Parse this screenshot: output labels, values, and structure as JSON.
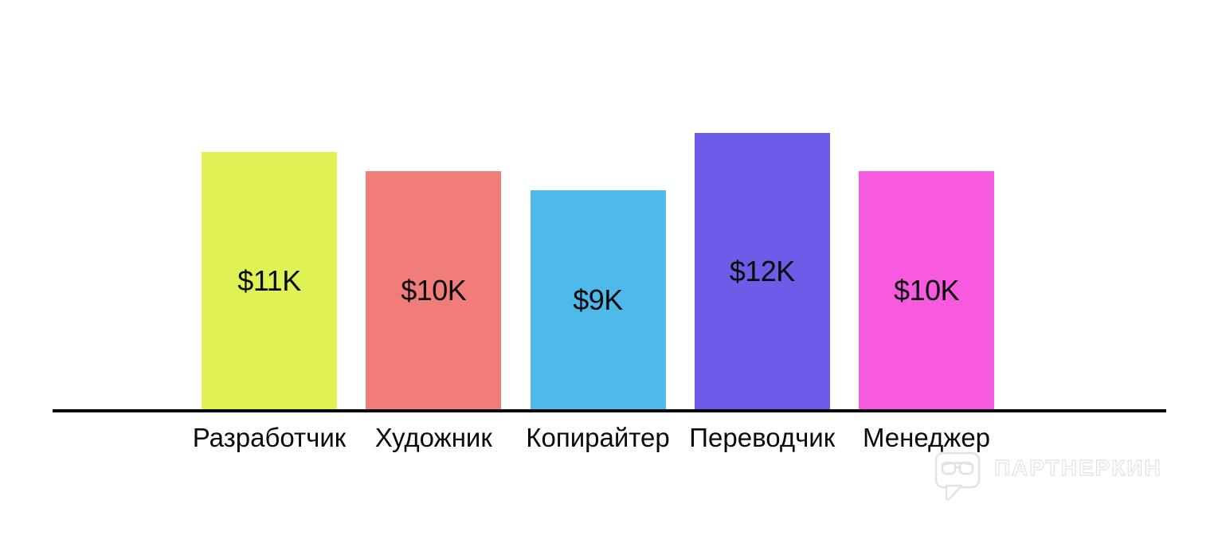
{
  "chart_data": {
    "type": "bar",
    "title": "",
    "xlabel": "",
    "ylabel": "",
    "categories": [
      "Разработчик",
      "Художник",
      "Копирайтер",
      "Переводчик",
      "Менеджер"
    ],
    "values": [
      11,
      10,
      9,
      12,
      10
    ],
    "unit": "thousand USD ($K)",
    "value_labels": [
      "$11K",
      "$10K",
      "$9K",
      "$12K",
      "$10K"
    ],
    "bar_colors": [
      "#dff155",
      "#f17d7b",
      "#4fbae9",
      "#6c5ce8",
      "#f65ade"
    ],
    "label_color": "#0a0a0a",
    "axis_color": "#000000",
    "grid": false,
    "legend": false,
    "value_label_position": "center-of-bar",
    "background": "#ffffff"
  },
  "watermark": {
    "text": "ПАРТНЕРКИН",
    "logo": "speech-bubble-glasses-icon",
    "color": "#e2e2e2"
  }
}
